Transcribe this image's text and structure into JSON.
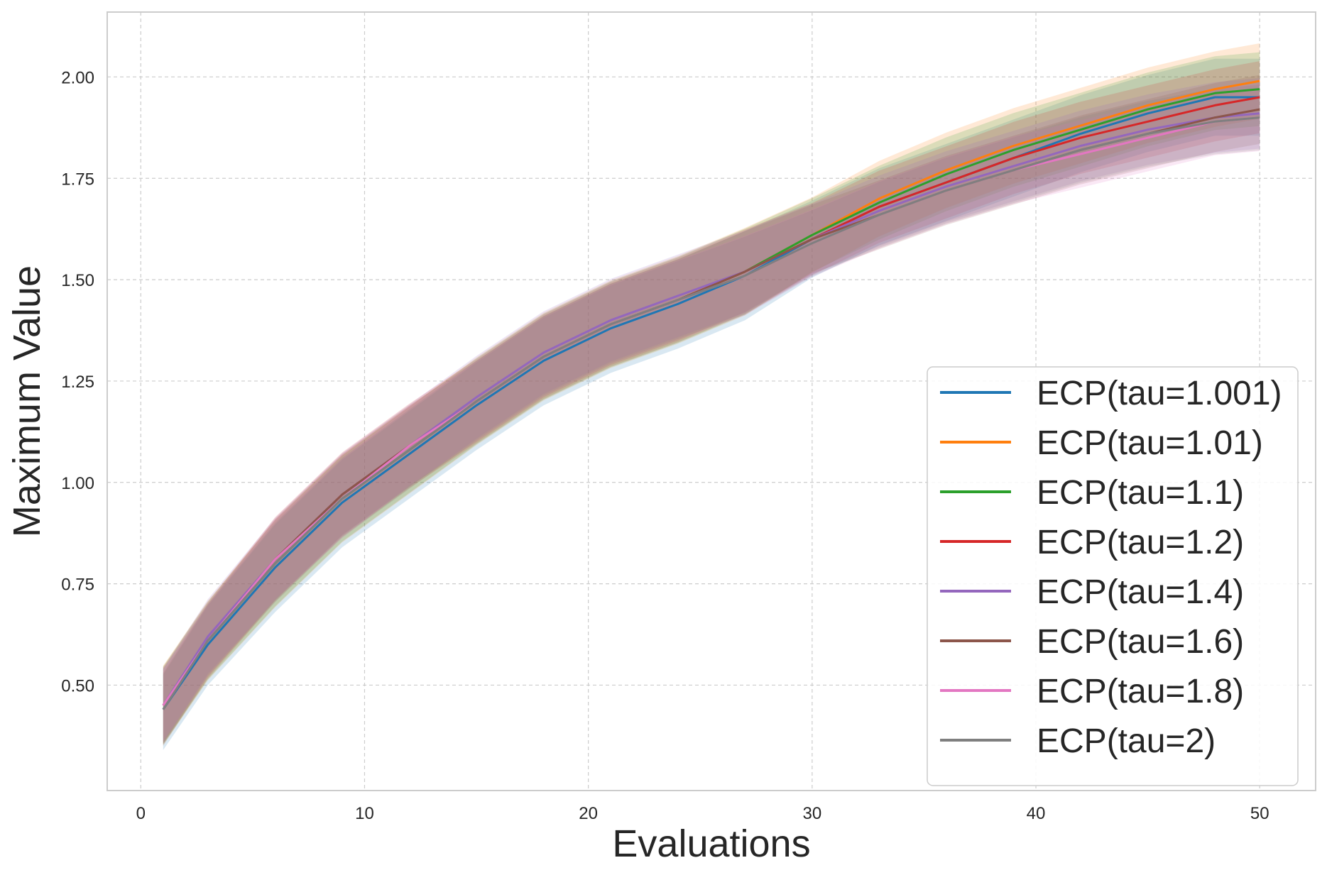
{
  "chart_data": {
    "type": "line",
    "title": "",
    "xlabel": "Evaluations",
    "ylabel": "Maximum Value",
    "xlim": [
      -1.5,
      52.5
    ],
    "ylim": [
      0.24,
      2.16
    ],
    "xticks": [
      0,
      10,
      20,
      30,
      40,
      50
    ],
    "xtick_labels": [
      "0",
      "10",
      "20",
      "30",
      "40",
      "50"
    ],
    "yticks": [
      0.5,
      0.75,
      1.0,
      1.25,
      1.5,
      1.75,
      2.0
    ],
    "ytick_labels": [
      "0.50",
      "0.75",
      "1.00",
      "1.25",
      "1.50",
      "1.75",
      "2.00"
    ],
    "grid": true,
    "legend_position": "lower-right",
    "shaded_band": "mean ± spread around each series",
    "x": [
      1,
      3,
      6,
      9,
      12,
      15,
      18,
      21,
      24,
      27,
      30,
      33,
      36,
      39,
      42,
      45,
      48,
      50
    ],
    "series": [
      {
        "name": "ECP(tau=1.001)",
        "color": "#1f77b4",
        "values": [
          0.44,
          0.6,
          0.79,
          0.95,
          1.07,
          1.19,
          1.3,
          1.38,
          1.44,
          1.51,
          1.6,
          1.68,
          1.74,
          1.8,
          1.86,
          1.91,
          1.95,
          1.95
        ]
      },
      {
        "name": "ECP(tau=1.01)",
        "color": "#ff7f0e",
        "values": [
          0.45,
          0.61,
          0.8,
          0.96,
          1.08,
          1.2,
          1.31,
          1.39,
          1.45,
          1.52,
          1.61,
          1.7,
          1.77,
          1.83,
          1.88,
          1.93,
          1.97,
          1.99
        ]
      },
      {
        "name": "ECP(tau=1.1)",
        "color": "#2ca02c",
        "values": [
          0.45,
          0.61,
          0.8,
          0.96,
          1.08,
          1.2,
          1.31,
          1.39,
          1.45,
          1.52,
          1.61,
          1.69,
          1.76,
          1.82,
          1.87,
          1.92,
          1.96,
          1.97
        ]
      },
      {
        "name": "ECP(tau=1.2)",
        "color": "#d62728",
        "values": [
          0.45,
          0.61,
          0.81,
          0.97,
          1.09,
          1.2,
          1.31,
          1.39,
          1.45,
          1.52,
          1.6,
          1.68,
          1.74,
          1.8,
          1.85,
          1.89,
          1.93,
          1.95
        ]
      },
      {
        "name": "ECP(tau=1.4)",
        "color": "#9467bd",
        "values": [
          0.45,
          0.62,
          0.81,
          0.97,
          1.09,
          1.21,
          1.32,
          1.4,
          1.46,
          1.52,
          1.6,
          1.67,
          1.73,
          1.78,
          1.83,
          1.87,
          1.9,
          1.91
        ]
      },
      {
        "name": "ECP(tau=1.6)",
        "color": "#8c564b",
        "values": [
          0.44,
          0.61,
          0.81,
          0.97,
          1.09,
          1.2,
          1.31,
          1.39,
          1.45,
          1.52,
          1.6,
          1.66,
          1.72,
          1.77,
          1.82,
          1.86,
          1.9,
          1.92
        ]
      },
      {
        "name": "ECP(tau=1.8)",
        "color": "#e377c2",
        "values": [
          0.45,
          0.61,
          0.81,
          0.96,
          1.09,
          1.2,
          1.31,
          1.39,
          1.45,
          1.51,
          1.59,
          1.66,
          1.72,
          1.77,
          1.81,
          1.85,
          1.89,
          1.9
        ]
      },
      {
        "name": "ECP(tau=2)",
        "color": "#7f7f7f",
        "values": [
          0.44,
          0.61,
          0.8,
          0.96,
          1.08,
          1.2,
          1.31,
          1.39,
          1.45,
          1.51,
          1.59,
          1.66,
          1.72,
          1.77,
          1.82,
          1.86,
          1.89,
          1.9
        ]
      }
    ]
  }
}
